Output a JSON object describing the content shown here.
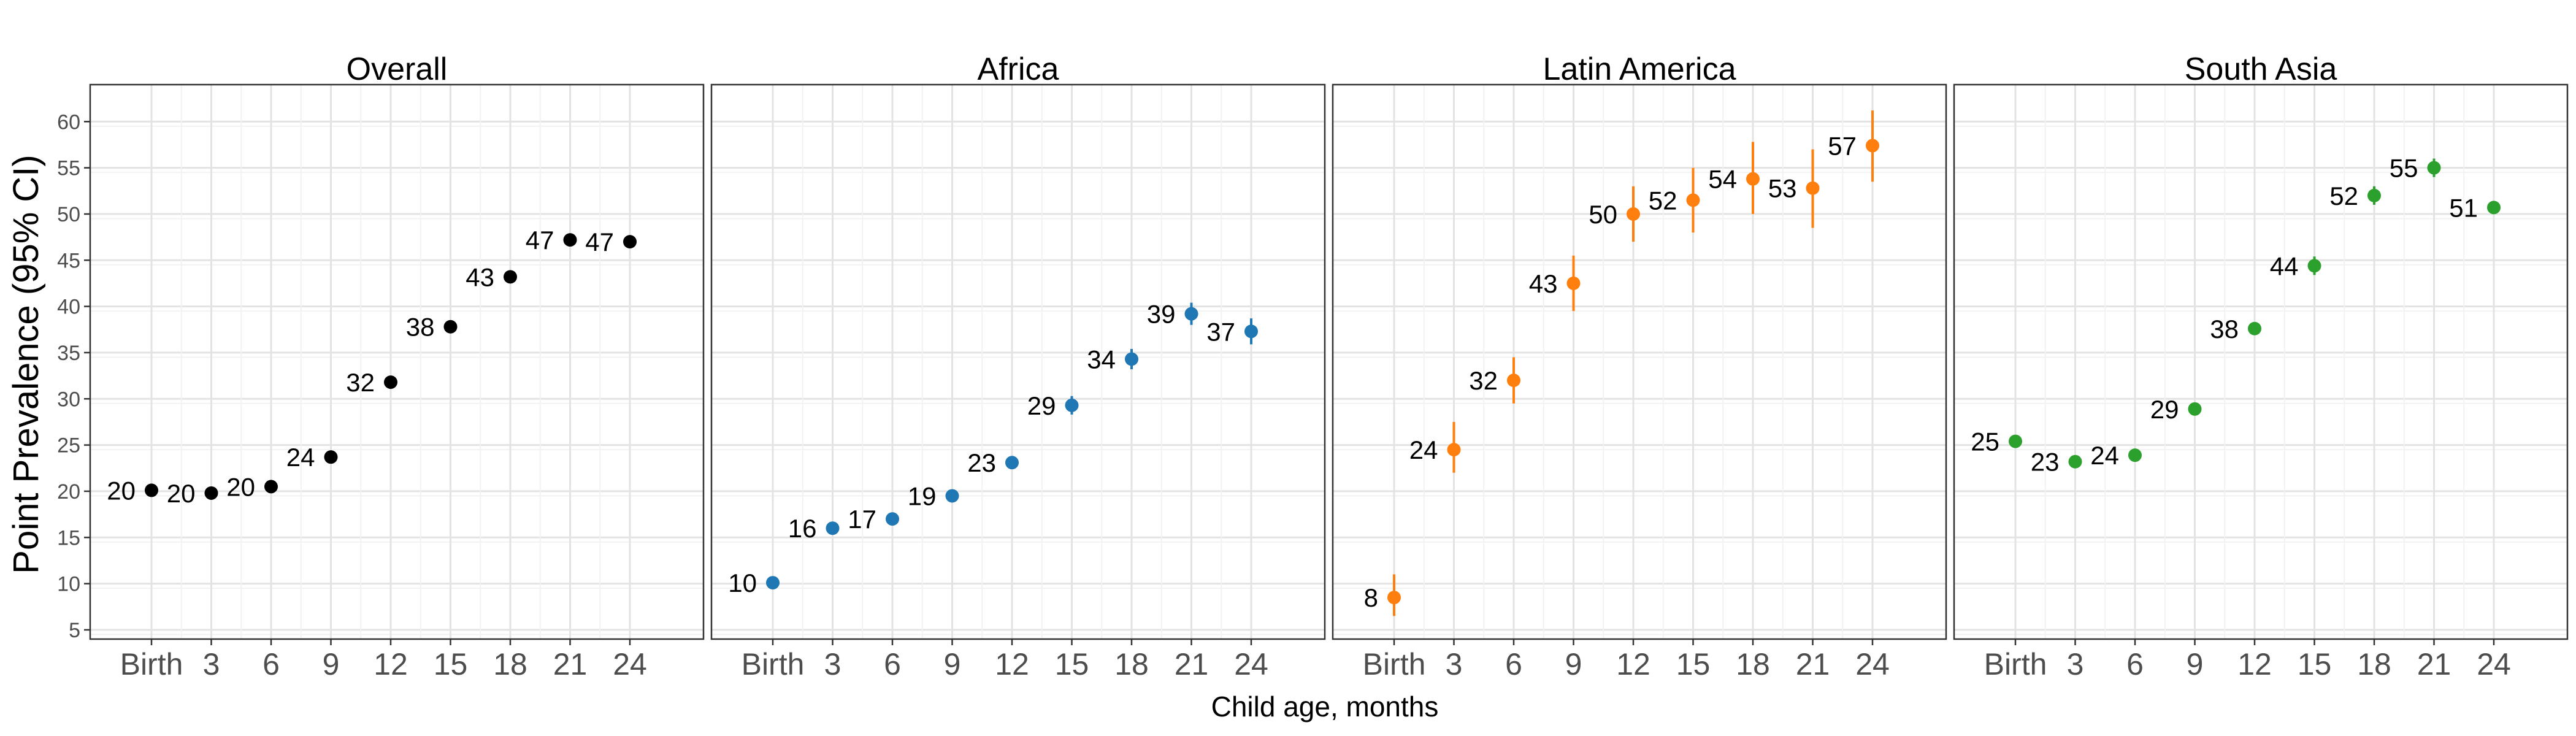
{
  "figure": {
    "ylabel": "Point Prevalence (95% CI)",
    "xlabel": "Child age, months"
  },
  "chart_data": [
    {
      "type": "scatter",
      "title": "Overall",
      "color": "#000000",
      "x": [
        "Birth",
        "3",
        "6",
        "9",
        "12",
        "15",
        "18",
        "21",
        "24"
      ],
      "y": [
        20.1,
        19.8,
        20.5,
        23.7,
        31.8,
        37.8,
        43.2,
        47.2,
        47.0
      ],
      "ci_low": [
        19.6,
        19.3,
        20.0,
        23.2,
        31.3,
        37.3,
        42.7,
        46.6,
        46.5
      ],
      "ci_high": [
        20.6,
        20.3,
        21.0,
        24.2,
        32.3,
        38.3,
        43.7,
        47.8,
        47.5
      ],
      "labels": [
        "20",
        "20",
        "20",
        "24",
        "32",
        "38",
        "43",
        "47",
        "47"
      ],
      "ylim": [
        4,
        64
      ],
      "yticks": [
        "5",
        "10",
        "15",
        "20",
        "25",
        "30",
        "35",
        "40",
        "45",
        "50",
        "55",
        "60"
      ],
      "grid": true
    },
    {
      "type": "scatter",
      "title": "Africa",
      "color": "#1f77b4",
      "x": [
        "Birth",
        "3",
        "6",
        "9",
        "12",
        "15",
        "18",
        "21",
        "24"
      ],
      "y": [
        10.1,
        16.0,
        17.0,
        19.5,
        23.1,
        29.3,
        34.3,
        39.2,
        37.3
      ],
      "ci_low": [
        9.6,
        15.4,
        16.4,
        18.9,
        22.5,
        28.3,
        33.2,
        38.0,
        35.9
      ],
      "ci_high": [
        10.6,
        16.6,
        17.6,
        20.1,
        23.7,
        30.3,
        35.4,
        40.4,
        38.7
      ],
      "labels": [
        "10",
        "16",
        "17",
        "19",
        "23",
        "29",
        "34",
        "39",
        "37"
      ],
      "ylim": [
        4,
        64
      ],
      "grid": true
    },
    {
      "type": "scatter",
      "title": "Latin America",
      "color": "#ff7f0e",
      "x": [
        "Birth",
        "3",
        "6",
        "9",
        "12",
        "15",
        "18",
        "21",
        "24"
      ],
      "y": [
        8.5,
        24.5,
        32.0,
        42.5,
        50.0,
        51.5,
        53.8,
        52.8,
        57.4
      ],
      "ci_low": [
        6.5,
        22.0,
        29.5,
        39.5,
        47.0,
        48.0,
        50.0,
        48.5,
        53.5
      ],
      "ci_high": [
        11.0,
        27.5,
        34.5,
        45.5,
        53.0,
        55.0,
        57.8,
        57.0,
        61.2
      ],
      "labels": [
        "8",
        "24",
        "32",
        "43",
        "50",
        "52",
        "54",
        "53",
        "57"
      ],
      "ylim": [
        4,
        64
      ],
      "grid": true
    },
    {
      "type": "scatter",
      "title": "South Asia",
      "color": "#2ca02c",
      "x": [
        "Birth",
        "3",
        "6",
        "9",
        "12",
        "15",
        "18",
        "21",
        "24"
      ],
      "y": [
        25.4,
        23.2,
        23.9,
        28.9,
        37.6,
        44.4,
        52.0,
        55.0,
        50.7
      ],
      "ci_low": [
        24.9,
        22.7,
        23.4,
        28.4,
        37.0,
        43.4,
        51.0,
        54.0,
        50.1
      ],
      "ci_high": [
        25.9,
        23.7,
        24.4,
        29.4,
        38.2,
        45.4,
        53.0,
        56.0,
        51.3
      ],
      "labels": [
        "25",
        "23",
        "24",
        "29",
        "38",
        "44",
        "52",
        "55",
        "51"
      ],
      "ylim": [
        4,
        64
      ],
      "grid": true
    }
  ]
}
